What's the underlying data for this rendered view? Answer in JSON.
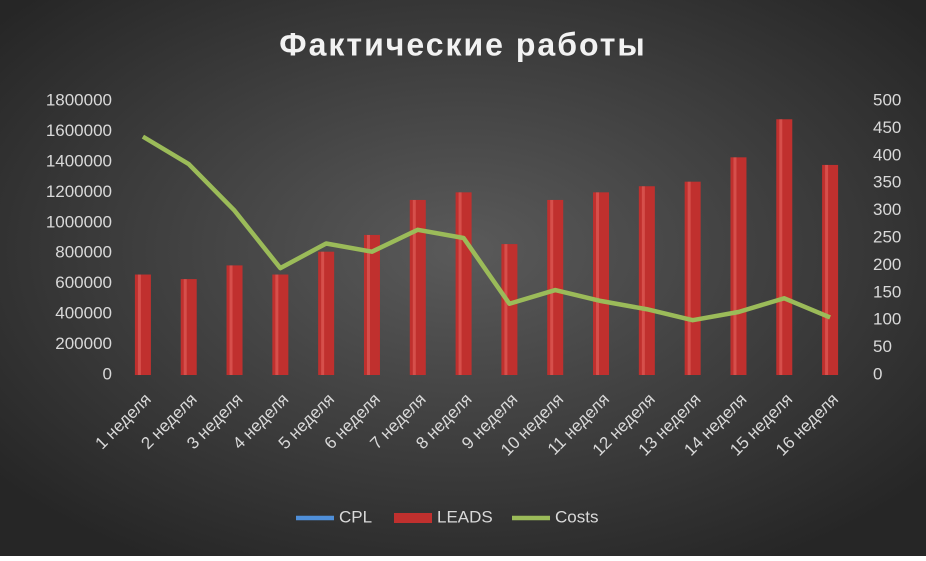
{
  "chart_data": {
    "type": "bar_line",
    "title": "Фактические работы",
    "categories": [
      "1 неделя",
      "2 неделя",
      "3 неделя",
      "4 неделя",
      "5 неделя",
      "6 неделя",
      "7 неделя",
      "8 неделя",
      "9 неделя",
      "10 неделя",
      "11 неделя",
      "12 неделя",
      "13 неделя",
      "14 неделя",
      "15 неделя",
      "16 неделя"
    ],
    "series": [
      {
        "name": "CPL",
        "color": "#4f8fd9",
        "type": "line",
        "axis": "y2",
        "values": [
          null,
          null,
          null,
          null,
          null,
          null,
          null,
          null,
          null,
          null,
          null,
          null,
          null,
          null,
          null,
          null
        ]
      },
      {
        "name": "LEADS",
        "color": "#c0302e",
        "type": "bar",
        "axis": "y",
        "values": [
          660000,
          630000,
          720000,
          660000,
          810000,
          920000,
          1150000,
          1200000,
          860000,
          1150000,
          1200000,
          1240000,
          1270000,
          1430000,
          1680000,
          1380000
        ]
      },
      {
        "name": "Costs",
        "color": "#9bbb59",
        "type": "line",
        "axis": "y2",
        "values": [
          435,
          385,
          300,
          195,
          240,
          225,
          265,
          250,
          130,
          155,
          135,
          120,
          100,
          115,
          140,
          105
        ]
      }
    ],
    "ylim": [
      0,
      1800000
    ],
    "yticks": [
      0,
      200000,
      400000,
      600000,
      800000,
      1000000,
      1200000,
      1400000,
      1600000,
      1800000
    ],
    "y2lim": [
      0,
      500
    ],
    "y2ticks": [
      0,
      50,
      100,
      150,
      200,
      250,
      300,
      350,
      400,
      450,
      500
    ],
    "legend": "bottom"
  }
}
